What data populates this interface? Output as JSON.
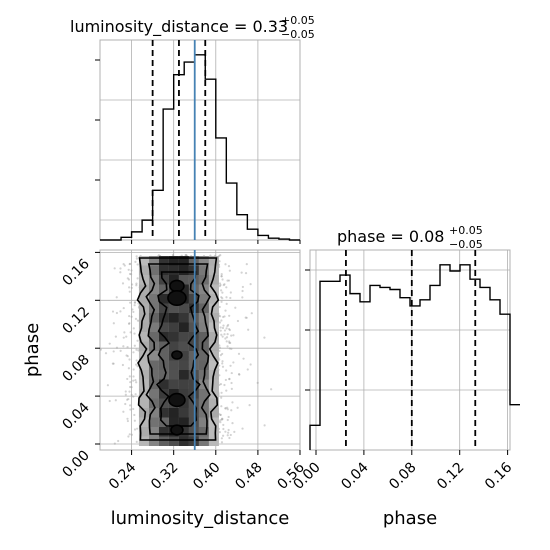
{
  "chart_data": [
    {
      "type": "histogram",
      "panel": "luminosity_distance-marginal",
      "title": {
        "param": "luminosity_distance",
        "median": "0.33",
        "plus": "+0.05",
        "minus": "−0.05"
      },
      "xlim": [
        0.18,
        0.56
      ],
      "bins": {
        "start": 0.18,
        "width": 0.02
      },
      "counts": [
        0,
        0,
        3,
        9,
        22,
        55,
        145,
        183,
        197,
        205,
        178,
        113,
        63,
        28,
        12,
        5,
        2,
        1,
        0
      ],
      "quantiles": [
        0.28,
        0.33,
        0.38
      ],
      "truth": 0.36,
      "grid": true
    },
    {
      "type": "histogram",
      "panel": "phase-marginal",
      "title": {
        "param": "phase",
        "median": "0.08",
        "plus": "+0.05",
        "minus": "−0.05"
      },
      "xlim": [
        -0.005,
        0.162
      ],
      "bins": {
        "start": -0.005,
        "width": 0.00835
      },
      "counts": [
        12,
        82,
        82,
        85,
        76,
        72,
        80,
        79,
        78,
        74,
        70,
        73,
        80,
        90,
        87,
        90,
        83,
        79,
        73,
        66,
        22
      ],
      "quantiles": [
        0.025,
        0.08,
        0.133
      ],
      "truth": null,
      "grid": true
    },
    {
      "type": "scatter",
      "panel": "2d-posterior",
      "xlabel": "luminosity_distance",
      "ylabel": "phase",
      "xlim": [
        0.18,
        0.56
      ],
      "ylim": [
        -0.005,
        0.162
      ],
      "xticks": [
        "0.24",
        "0.32",
        "0.40",
        "0.48",
        "0.56"
      ],
      "yticks": [
        "0.00",
        "0.04",
        "0.08",
        "0.12",
        "0.16"
      ],
      "phase_xticks": [
        "0.00",
        "0.04",
        "0.08",
        "0.12",
        "0.16"
      ],
      "truth_x": 0.36,
      "density_center_x": 0.33,
      "density_width_x": 0.05,
      "contour_levels": [
        "1-sigma",
        "2-sigma",
        "3-sigma"
      ],
      "grid": true
    }
  ],
  "colors": {
    "hist": "#000000",
    "truth": "#4682b4",
    "grid": "#b0b0b0",
    "points": "#9e9e9e"
  }
}
